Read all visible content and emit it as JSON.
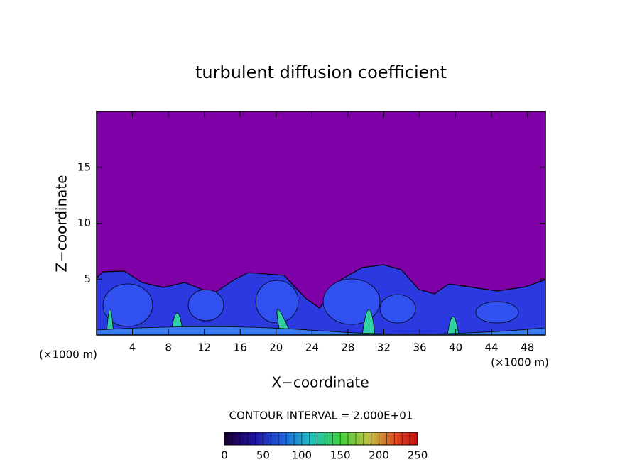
{
  "chart_data": {
    "type": "contour",
    "title": "turbulent diffusion coefficient",
    "x_label": "X−coordinate",
    "y_label": "Z−coordinate",
    "x_unit": "(×1000 m)",
    "y_unit": "(×1000 m)",
    "xlim": [
      0,
      50
    ],
    "xticks": [
      4,
      8,
      12,
      16,
      20,
      24,
      28,
      32,
      36,
      40,
      44,
      48
    ],
    "ylim": [
      0,
      20
    ],
    "yticks": [
      5,
      10,
      15
    ],
    "contour_interval_label": "CONTOUR INTERVAL = 2.000E+01",
    "colorbar_lim": [
      0,
      250
    ],
    "colorbar_ticks": [
      0,
      50,
      100,
      150,
      200,
      250
    ],
    "color": "#8000a8"
  }
}
